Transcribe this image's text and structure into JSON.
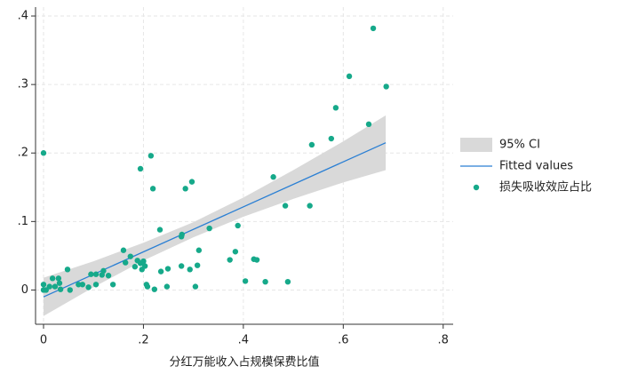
{
  "chart_data": {
    "type": "scatter",
    "x_label": "分红万能收入占规模保费比值",
    "xlim": [
      -0.016,
      0.82
    ],
    "ylim": [
      -0.05,
      0.413
    ],
    "xticks": [
      0,
      {
        "value": 0.2,
        "label": ".2"
      },
      {
        "value": 0.4,
        "label": ".4"
      },
      {
        "value": 0.6,
        "label": ".6"
      },
      {
        "value": 0.8,
        "label": ".8"
      }
    ],
    "yticks": [
      0,
      {
        "value": 0.1,
        "label": ".1"
      },
      {
        "value": 0.2,
        "label": ".2"
      },
      {
        "value": 0.3,
        "label": ".3"
      },
      {
        "value": 0.4,
        "label": ".4"
      }
    ],
    "grid": true,
    "legend": "right",
    "series": [
      {
        "name": "95% CI",
        "color": "#d9d9d9",
        "x": [
          0,
          0.1,
          0.2,
          0.3,
          0.4,
          0.5,
          0.6,
          0.685
        ],
        "lower": [
          -0.038,
          0.004,
          0.043,
          0.077,
          0.107,
          0.133,
          0.157,
          0.175
        ],
        "upper": [
          0.018,
          0.042,
          0.069,
          0.099,
          0.135,
          0.175,
          0.217,
          0.255
        ]
      },
      {
        "name": "Fitted values",
        "color": "#2a7fd4",
        "x": [
          0,
          0.685
        ],
        "values": [
          -0.01,
          0.215
        ]
      },
      {
        "name": "损失吸收效应占比",
        "color": "#16a98a",
        "x": [
          0,
          0,
          0,
          0.005,
          0.012,
          0.018,
          0.023,
          0.03,
          0.032,
          0.034,
          0.048,
          0.053,
          0.07,
          0.078,
          0.09,
          0.095,
          0.105,
          0.105,
          0.117,
          0.12,
          0.13,
          0.139,
          0.16,
          0.164,
          0.174,
          0.183,
          0.188,
          0.194,
          0.194,
          0.197,
          0.2,
          0.203,
          0.206,
          0.208,
          0.215,
          0.219,
          0.222,
          0.233,
          0.235,
          0.249,
          0.247,
          0.276,
          0.276,
          0.277,
          0.284,
          0.293,
          0.297,
          0.304,
          0.308,
          0.311,
          0.332,
          0.373,
          0.384,
          0.389,
          0.404,
          0.421,
          0.427,
          0.444,
          0.46,
          0.484,
          0.489,
          0.533,
          0.537,
          0.576,
          0.585,
          0.612,
          0.651,
          0.66,
          0.686
        ],
        "values": [
          0.2,
          0.008,
          0,
          0,
          0.005,
          0.017,
          0.005,
          0.017,
          0.01,
          0.001,
          0.03,
          0,
          0.008,
          0.008,
          0.004,
          0.023,
          0.008,
          0.023,
          0.022,
          0.028,
          0.021,
          0.008,
          0.058,
          0.04,
          0.049,
          0.034,
          0.043,
          0.177,
          0.039,
          0.03,
          0.042,
          0.035,
          0.008,
          0.005,
          0.196,
          0.148,
          0.001,
          0.088,
          0.027,
          0.031,
          0.005,
          0.035,
          0.078,
          0.081,
          0.148,
          0.03,
          0.158,
          0.005,
          0.036,
          0.058,
          0.09,
          0.044,
          0.056,
          0.094,
          0.013,
          0.045,
          0.044,
          0.012,
          0.165,
          0.123,
          0.012,
          0.123,
          0.212,
          0.221,
          0.266,
          0.312,
          0.242,
          0.382,
          0.297
        ]
      }
    ]
  }
}
